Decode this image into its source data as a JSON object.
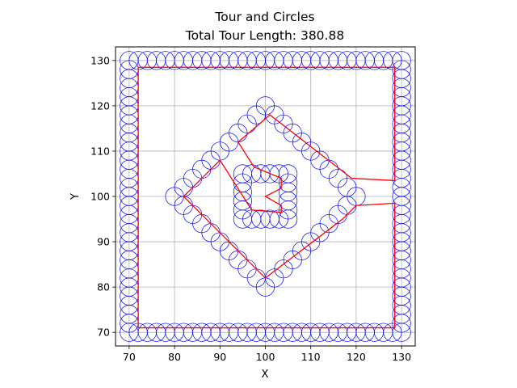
{
  "chart_data": {
    "type": "scatter",
    "title": "Tour and Circles",
    "subtitle": "Total Tour Length: 380.88",
    "xlabel": "X",
    "ylabel": "Y",
    "xlim": [
      67,
      133
    ],
    "ylim": [
      67,
      133
    ],
    "xticks": [
      70,
      80,
      90,
      100,
      110,
      120,
      130
    ],
    "yticks": [
      70,
      80,
      90,
      100,
      110,
      120,
      130
    ],
    "grid": true,
    "colors": {
      "circles": "#0000ff",
      "tour": "#ff0000",
      "grid": "#b0b0b0",
      "axes": "#000000"
    },
    "circle_radius": 2,
    "square_edges": {
      "outer": {
        "min": 70,
        "max": 130,
        "step": 2
      },
      "inner": {
        "min": 95,
        "max": 105,
        "step": 2
      }
    },
    "diamond": {
      "center": [
        100,
        100
      ],
      "half_diagonal": 20,
      "step": 2
    },
    "tour": [
      [
        72,
        71
      ],
      [
        72,
        128.5
      ],
      [
        128.5,
        128.5
      ],
      [
        128.5,
        103.5
      ],
      [
        119,
        104
      ],
      [
        101,
        118
      ],
      [
        94,
        112
      ],
      [
        97.5,
        106.5
      ],
      [
        103.5,
        104
      ],
      [
        103.5,
        101.8
      ],
      [
        100,
        100
      ],
      [
        103.5,
        98
      ],
      [
        103.5,
        96.5
      ],
      [
        97,
        97
      ],
      [
        90,
        108
      ],
      [
        82,
        100
      ],
      [
        100,
        82
      ],
      [
        117,
        95
      ],
      [
        120,
        98
      ],
      [
        128.5,
        98.5
      ],
      [
        128.5,
        71
      ],
      [
        72,
        71
      ]
    ]
  }
}
